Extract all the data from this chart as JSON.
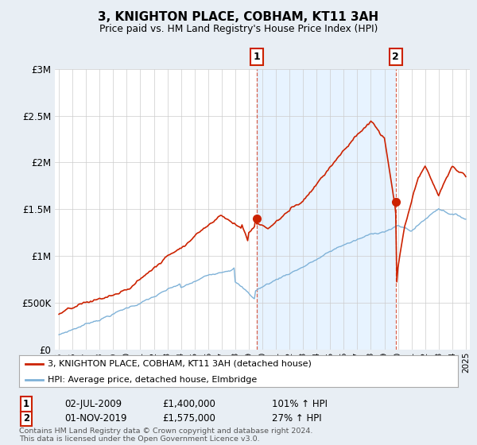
{
  "title": "3, KNIGHTON PLACE, COBHAM, KT11 3AH",
  "subtitle": "Price paid vs. HM Land Registry's House Price Index (HPI)",
  "ylim": [
    0,
    3000000
  ],
  "yticks": [
    0,
    500000,
    1000000,
    1500000,
    2000000,
    2500000,
    3000000
  ],
  "background_color": "#e8eef4",
  "plot_background": "#ffffff",
  "shade_color": "#ddeeff",
  "red_color": "#cc2200",
  "blue_color": "#7fb2d8",
  "legend_entries": [
    "3, KNIGHTON PLACE, COBHAM, KT11 3AH (detached house)",
    "HPI: Average price, detached house, Elmbridge"
  ],
  "table_rows": [
    [
      "1",
      "02-JUL-2009",
      "£1,400,000",
      "101% ↑ HPI"
    ],
    [
      "2",
      "01-NOV-2019",
      "£1,575,000",
      "27% ↑ HPI"
    ]
  ],
  "footer": "Contains HM Land Registry data © Crown copyright and database right 2024.\nThis data is licensed under the Open Government Licence v3.0.",
  "sale1_year": 2009.583,
  "sale1_price": 1400000,
  "sale2_year": 2019.833,
  "sale2_price": 1575000
}
